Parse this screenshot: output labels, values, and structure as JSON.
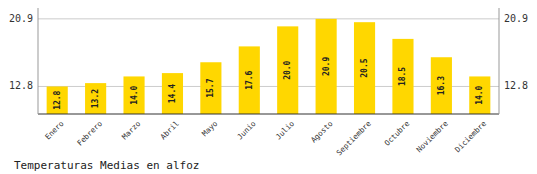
{
  "chart_data": {
    "type": "bar",
    "title": "Temperaturas Medias en alfoz",
    "categories": [
      "Enero",
      "Febrero",
      "Marzo",
      "Abril",
      "Mayo",
      "Junio",
      "Julio",
      "Agosto",
      "Septiembre",
      "Octubre",
      "Noviembre",
      "Diciembre"
    ],
    "values": [
      12.8,
      13.2,
      14.0,
      14.4,
      15.7,
      17.6,
      20.0,
      20.9,
      20.5,
      18.5,
      16.3,
      14.0
    ],
    "value_labels": [
      "12.8",
      "13.2",
      "14.0",
      "14.4",
      "15.7",
      "17.6",
      "20.0",
      "20.9",
      "20.5",
      "18.5",
      "16.3",
      "14.0"
    ],
    "data_labels": true,
    "color": "#FFD700",
    "ylim": [
      9.5,
      22.2
    ],
    "yticks": [
      12.8,
      20.9
    ],
    "y2lim": [
      9.5,
      22.2
    ],
    "y2ticks": [
      12.8,
      20.9
    ],
    "grid": true
  }
}
